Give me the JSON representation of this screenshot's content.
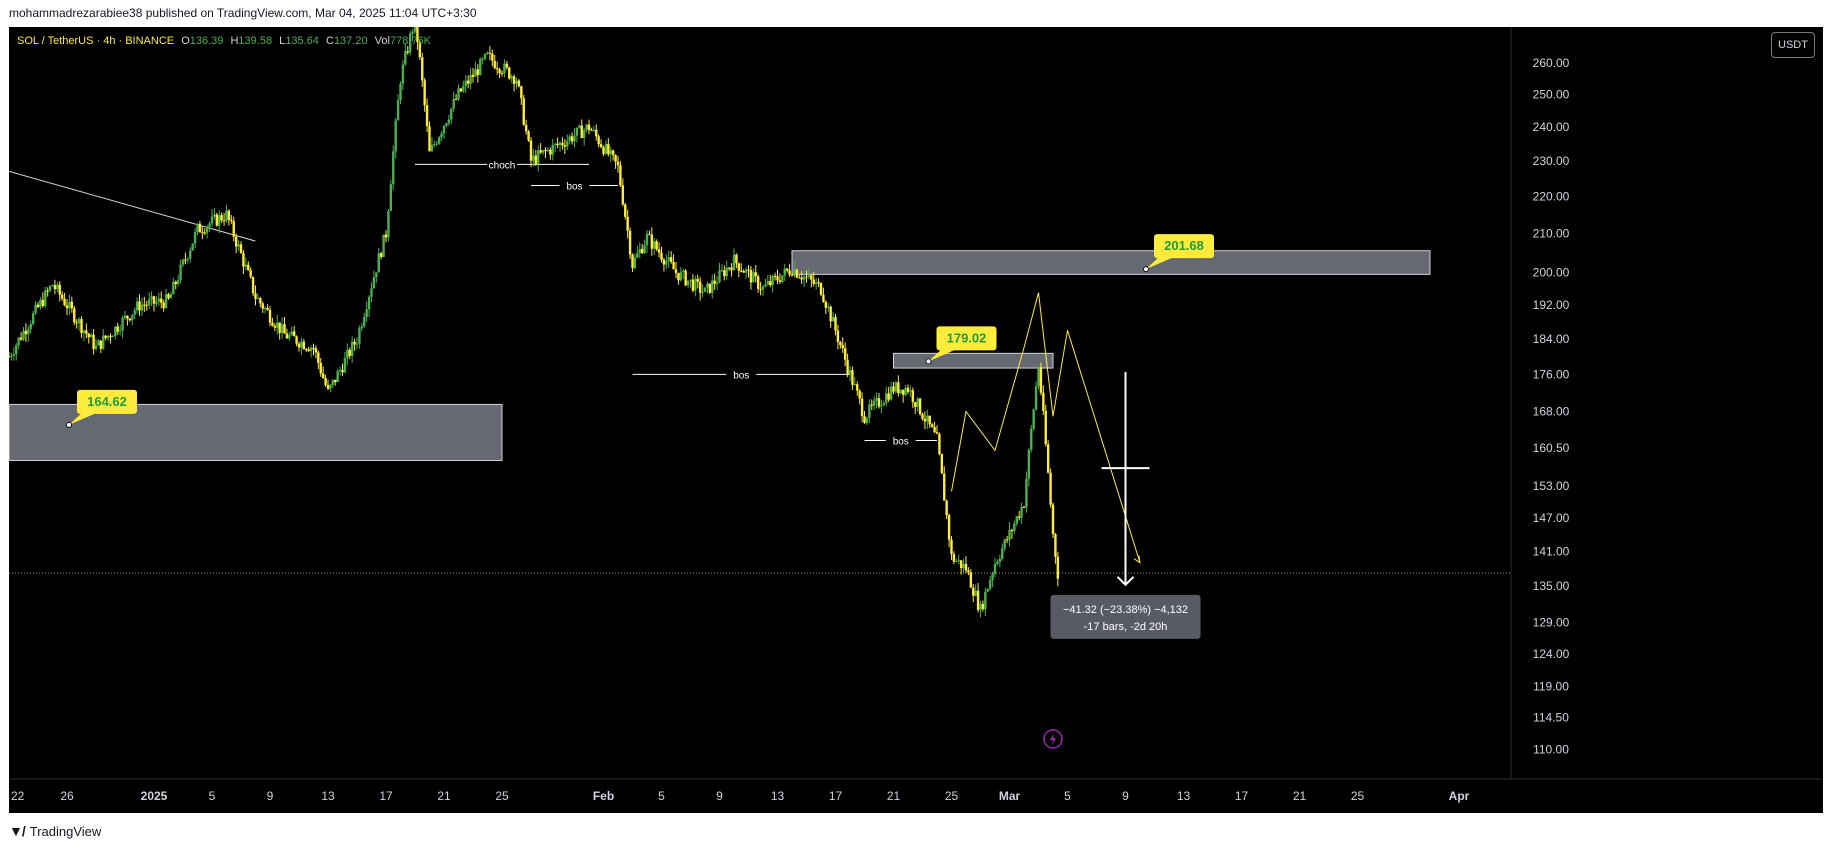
{
  "header": {
    "published_text": "mohammadrezarabiee38 published on TradingView.com, Mar 04, 2025 11:04 UTC+3:30"
  },
  "footer": {
    "brand": "TradingView"
  },
  "symbol_legend": {
    "symbol": "SOL / TetherUS · 4h · BINANCE",
    "o_label": "O",
    "o_value": "136.39",
    "h_label": "H",
    "h_value": "139.58",
    "l_label": "L",
    "l_value": "135.64",
    "c_label": "C",
    "c_value": "137.20",
    "vol_label": "Vol",
    "vol_value": "778.76K"
  },
  "currency_button": "USDT",
  "colors": {
    "background": "#000000",
    "candle_up": "#4caf50",
    "candle_down": "#ffeb3b",
    "label_bg": "#ffeb3b",
    "label_text": "#1b9e3e",
    "zone_fill": "#787b86",
    "projection": "#ffeb3b"
  },
  "chart_data": {
    "type": "candlestick",
    "ylim": [
      106,
      272
    ],
    "y_scale": "log",
    "y_ticks": [
      "260.00",
      "250.00",
      "240.00",
      "230.00",
      "220.00",
      "210.00",
      "200.00",
      "192.00",
      "184.00",
      "176.00",
      "168.00",
      "160.50",
      "153.00",
      "147.00",
      "141.00",
      "135.00",
      "129.00",
      "124.00",
      "119.00",
      "114.50",
      "110.00"
    ],
    "x_ticks": [
      "22",
      "26",
      "2025",
      "5",
      "9",
      "13",
      "17",
      "21",
      "25",
      "Feb",
      "5",
      "9",
      "13",
      "17",
      "21",
      "25",
      "Mar",
      "5",
      "9",
      "13",
      "17",
      "21",
      "25",
      "Apr"
    ],
    "x_tick_dates": [
      "2024-12-22",
      "2024-12-26",
      "2025-01-01",
      "2025-01-05",
      "2025-01-09",
      "2025-01-13",
      "2025-01-17",
      "2025-01-21",
      "2025-01-25",
      "2025-02-01",
      "2025-02-05",
      "2025-02-09",
      "2025-02-13",
      "2025-02-17",
      "2025-02-21",
      "2025-02-25",
      "2025-03-01",
      "2025-03-05",
      "2025-03-09",
      "2025-03-13",
      "2025-03-17",
      "2025-03-21",
      "2025-03-25",
      "2025-04-01"
    ],
    "price_path": [
      [
        "2024-12-22",
        180
      ],
      [
        "2024-12-25",
        197
      ],
      [
        "2024-12-28",
        182
      ],
      [
        "2024-12-31",
        192
      ],
      [
        "2025-01-02",
        193
      ],
      [
        "2025-01-04",
        211
      ],
      [
        "2025-01-06",
        215
      ],
      [
        "2025-01-08",
        194
      ],
      [
        "2025-01-10",
        185
      ],
      [
        "2025-01-12",
        182
      ],
      [
        "2025-01-13",
        172
      ],
      [
        "2025-01-15",
        184
      ],
      [
        "2025-01-17",
        210
      ],
      [
        "2025-01-18",
        255
      ],
      [
        "2025-01-19",
        275
      ],
      [
        "2025-01-20",
        232
      ],
      [
        "2025-01-22",
        250
      ],
      [
        "2025-01-24",
        262
      ],
      [
        "2025-01-26",
        255
      ],
      [
        "2025-01-27",
        230
      ],
      [
        "2025-01-29",
        235
      ],
      [
        "2025-01-31",
        240
      ],
      [
        "2025-02-02",
        228
      ],
      [
        "2025-02-03",
        202
      ],
      [
        "2025-02-04",
        209
      ],
      [
        "2025-02-06",
        200
      ],
      [
        "2025-02-08",
        195
      ],
      [
        "2025-02-10",
        203
      ],
      [
        "2025-02-12",
        196
      ],
      [
        "2025-02-14",
        201
      ],
      [
        "2025-02-16",
        196
      ],
      [
        "2025-02-18",
        176
      ],
      [
        "2025-02-19",
        167
      ],
      [
        "2025-02-21",
        173
      ],
      [
        "2025-02-22",
        173
      ],
      [
        "2025-02-24",
        162
      ],
      [
        "2025-02-25",
        140
      ],
      [
        "2025-02-26",
        138
      ],
      [
        "2025-02-27",
        131
      ],
      [
        "2025-02-28",
        139
      ],
      [
        "2025-03-01",
        144
      ],
      [
        "2025-03-02",
        150
      ],
      [
        "2025-03-03",
        178
      ],
      [
        "2025-03-04",
        144
      ],
      [
        "2025-03-04T08:00",
        137.2
      ]
    ],
    "last_price": 137.2,
    "zones": [
      {
        "from": "2024-12-22",
        "to": "2025-01-25",
        "low": 158,
        "high": 169.5,
        "label": "164.62"
      },
      {
        "from": "2025-02-21",
        "to": "2025-03-04",
        "low": 177.4,
        "high": 180.7,
        "label": "179.02"
      },
      {
        "from": "2025-02-14",
        "to": "2025-03-30",
        "low": 199.5,
        "high": 205.5,
        "label": "201.68"
      }
    ],
    "structure_lines": [
      {
        "from": "2025-01-19",
        "to": "2025-01-31",
        "price": 229,
        "label": "choch"
      },
      {
        "from": "2025-01-27",
        "to": "2025-02-02",
        "price": 223,
        "label": "bos"
      },
      {
        "from": "2025-02-03",
        "to": "2025-02-18",
        "price": 176,
        "label": "bos"
      },
      {
        "from": "2025-02-19",
        "to": "2025-02-24",
        "price": 162,
        "label": "bos"
      }
    ],
    "trendline": [
      [
        "2024-12-22",
        227
      ],
      [
        "2025-01-08",
        208
      ]
    ],
    "projection_path": [
      [
        "2025-02-25",
        152
      ],
      [
        "2025-02-26",
        168
      ],
      [
        "2025-02-28",
        160
      ],
      [
        "2025-03-02",
        182
      ],
      [
        "2025-03-03",
        195
      ],
      [
        "2025-03-04",
        167
      ],
      [
        "2025-03-05",
        186
      ],
      [
        "2025-03-10",
        139
      ]
    ],
    "measure": {
      "date": "2025-03-09",
      "from_price": 176.5,
      "to_price": 135.2,
      "crosshair_price": 156.5,
      "line1": "−41.32 (−23.38%) −4,132",
      "line2": "-17 bars, -2d 20h"
    }
  }
}
